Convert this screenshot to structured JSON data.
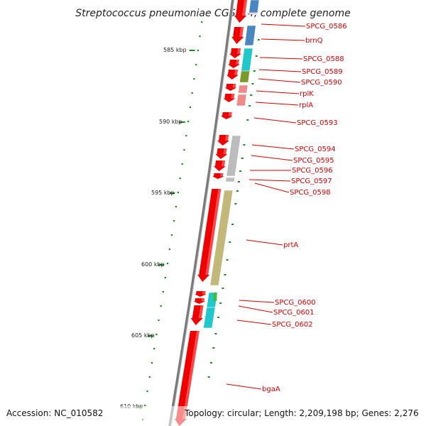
{
  "title": "Streptococcus pneumoniae CGSP14, complete genome",
  "footer": {
    "accession": "Accession: NC_010582",
    "topology": "Topology: circular; Length: 2,209,198 bp; Genes: 2,276"
  },
  "ruler": {
    "labels": [
      "585 kbp",
      "590 kbp",
      "595 kbp",
      "600 kbp",
      "605 kbp",
      "610 kbp"
    ]
  },
  "genes": [
    "SPCG_0586",
    "brnQ",
    "SPCG_0588",
    "SPCG_0589",
    "SPCG_0590",
    "rplK",
    "rplA",
    "SPCG_0593",
    "SPCG_0594",
    "SPCG_0595",
    "SPCG_0596",
    "SPCG_0597",
    "SPCG_0598",
    "prtA",
    "SPCG_0600",
    "SPCG_0601",
    "SPCG_0602",
    "bgaA"
  ],
  "colors": {
    "backbone": "#7a7a7a",
    "gene_arrow": "#ee0000",
    "label": "#d40000",
    "tick": "#1a8a1a",
    "cog_blue": "#4a86c0",
    "cog_cyan": "#20c8cc",
    "cog_olive": "#7a9a2a",
    "cog_pink": "#f08a8a",
    "cog_gray": "#bcbcbc",
    "cog_khaki": "#c2b87a",
    "cog_green": "#3cc040"
  }
}
